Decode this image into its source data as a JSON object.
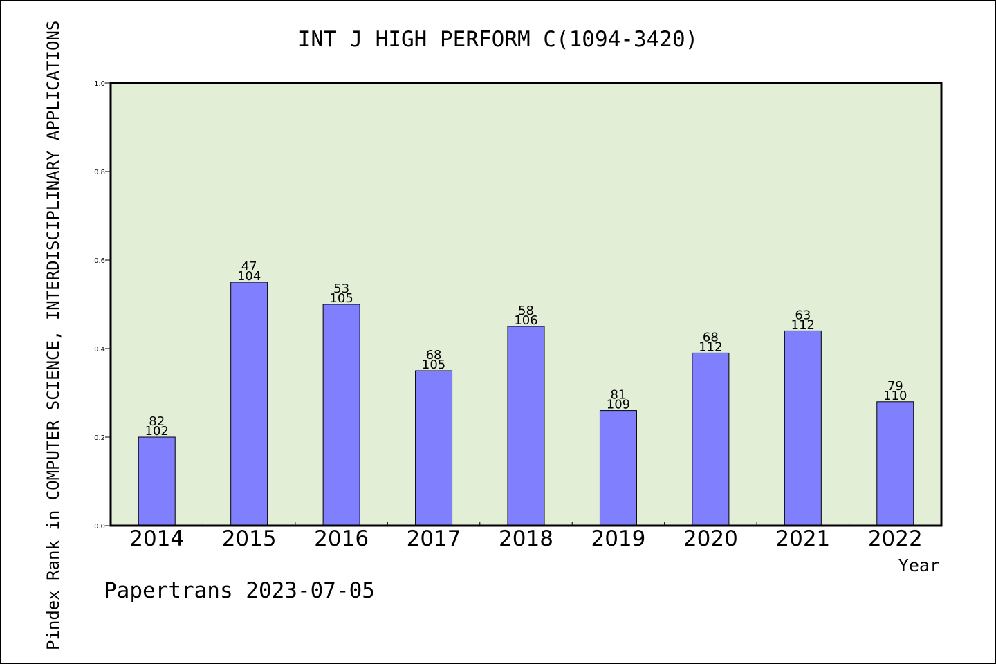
{
  "chart_data": {
    "type": "bar",
    "title": "INT J HIGH PERFORM C(1094-3420)",
    "ylabel": "Pindex Rank in COMPUTER SCIENCE, INTERDISCIPLINARY APPLICATIONS",
    "xlabel": "Year",
    "footer": "Papertrans 2023-07-05",
    "ylim": [
      0,
      1.0
    ],
    "yticks": [
      "0.0",
      "0.2",
      "0.4",
      "0.6",
      "0.8",
      "1.0"
    ],
    "categories": [
      "2014",
      "2015",
      "2016",
      "2017",
      "2018",
      "2019",
      "2020",
      "2021",
      "2022"
    ],
    "values": [
      0.2,
      0.55,
      0.5,
      0.35,
      0.45,
      0.26,
      0.39,
      0.44,
      0.28
    ],
    "rank_labels": [
      "82",
      "47",
      "53",
      "68",
      "58",
      "81",
      "68",
      "63",
      "79"
    ],
    "total_labels": [
      "102",
      "104",
      "105",
      "105",
      "106",
      "109",
      "112",
      "112",
      "110"
    ],
    "grid": false,
    "legend": "none"
  },
  "colors": {
    "plot_background": "#e2efd6",
    "bar_fill": "#8080ff",
    "bar_stroke": "#000000",
    "axis": "#000000"
  }
}
